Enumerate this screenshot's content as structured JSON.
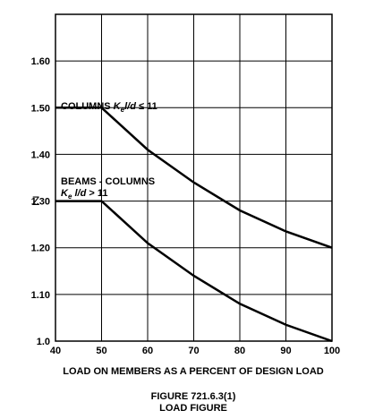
{
  "chart_data": {
    "type": "line",
    "x": [
      40,
      50,
      60,
      70,
      80,
      90,
      100
    ],
    "series": [
      {
        "name": "COLUMNS",
        "color": "#000000",
        "values": [
          1.5,
          1.5,
          1.41,
          1.34,
          1.28,
          1.235,
          1.2
        ]
      },
      {
        "name": "BEAMS - COLUMNS",
        "color": "#000000",
        "values": [
          1.3,
          1.3,
          1.21,
          1.14,
          1.08,
          1.035,
          1.0
        ]
      }
    ],
    "xlim": [
      40,
      100
    ],
    "xticks": [
      40,
      50,
      60,
      70,
      80,
      90,
      100
    ],
    "ylim": [
      1.0,
      1.7
    ],
    "yticks": [
      {
        "value": 1.0,
        "label": "1.0"
      },
      {
        "value": 1.1,
        "label": "1.10"
      },
      {
        "value": 1.2,
        "label": "1.20"
      },
      {
        "value": 1.3,
        "label": "1.30"
      },
      {
        "value": 1.4,
        "label": "1.40"
      },
      {
        "value": 1.5,
        "label": "1.50"
      },
      {
        "value": 1.6,
        "label": "1.60"
      }
    ],
    "grid": true,
    "y_label": "Z",
    "x_label": "LOAD ON MEMBERS AS A PERCENT OF DESIGN LOAD",
    "caption": [
      "FIGURE 721.6.3(1)",
      "LOAD FIGURE"
    ],
    "annotations": [
      [
        "COLUMNS ",
        "K",
        "e",
        "l/d",
        " ≤ 11"
      ],
      [
        "BEAMS - COLUMNS"
      ],
      [
        "K",
        "e",
        " l/d",
        " > 11"
      ]
    ]
  }
}
